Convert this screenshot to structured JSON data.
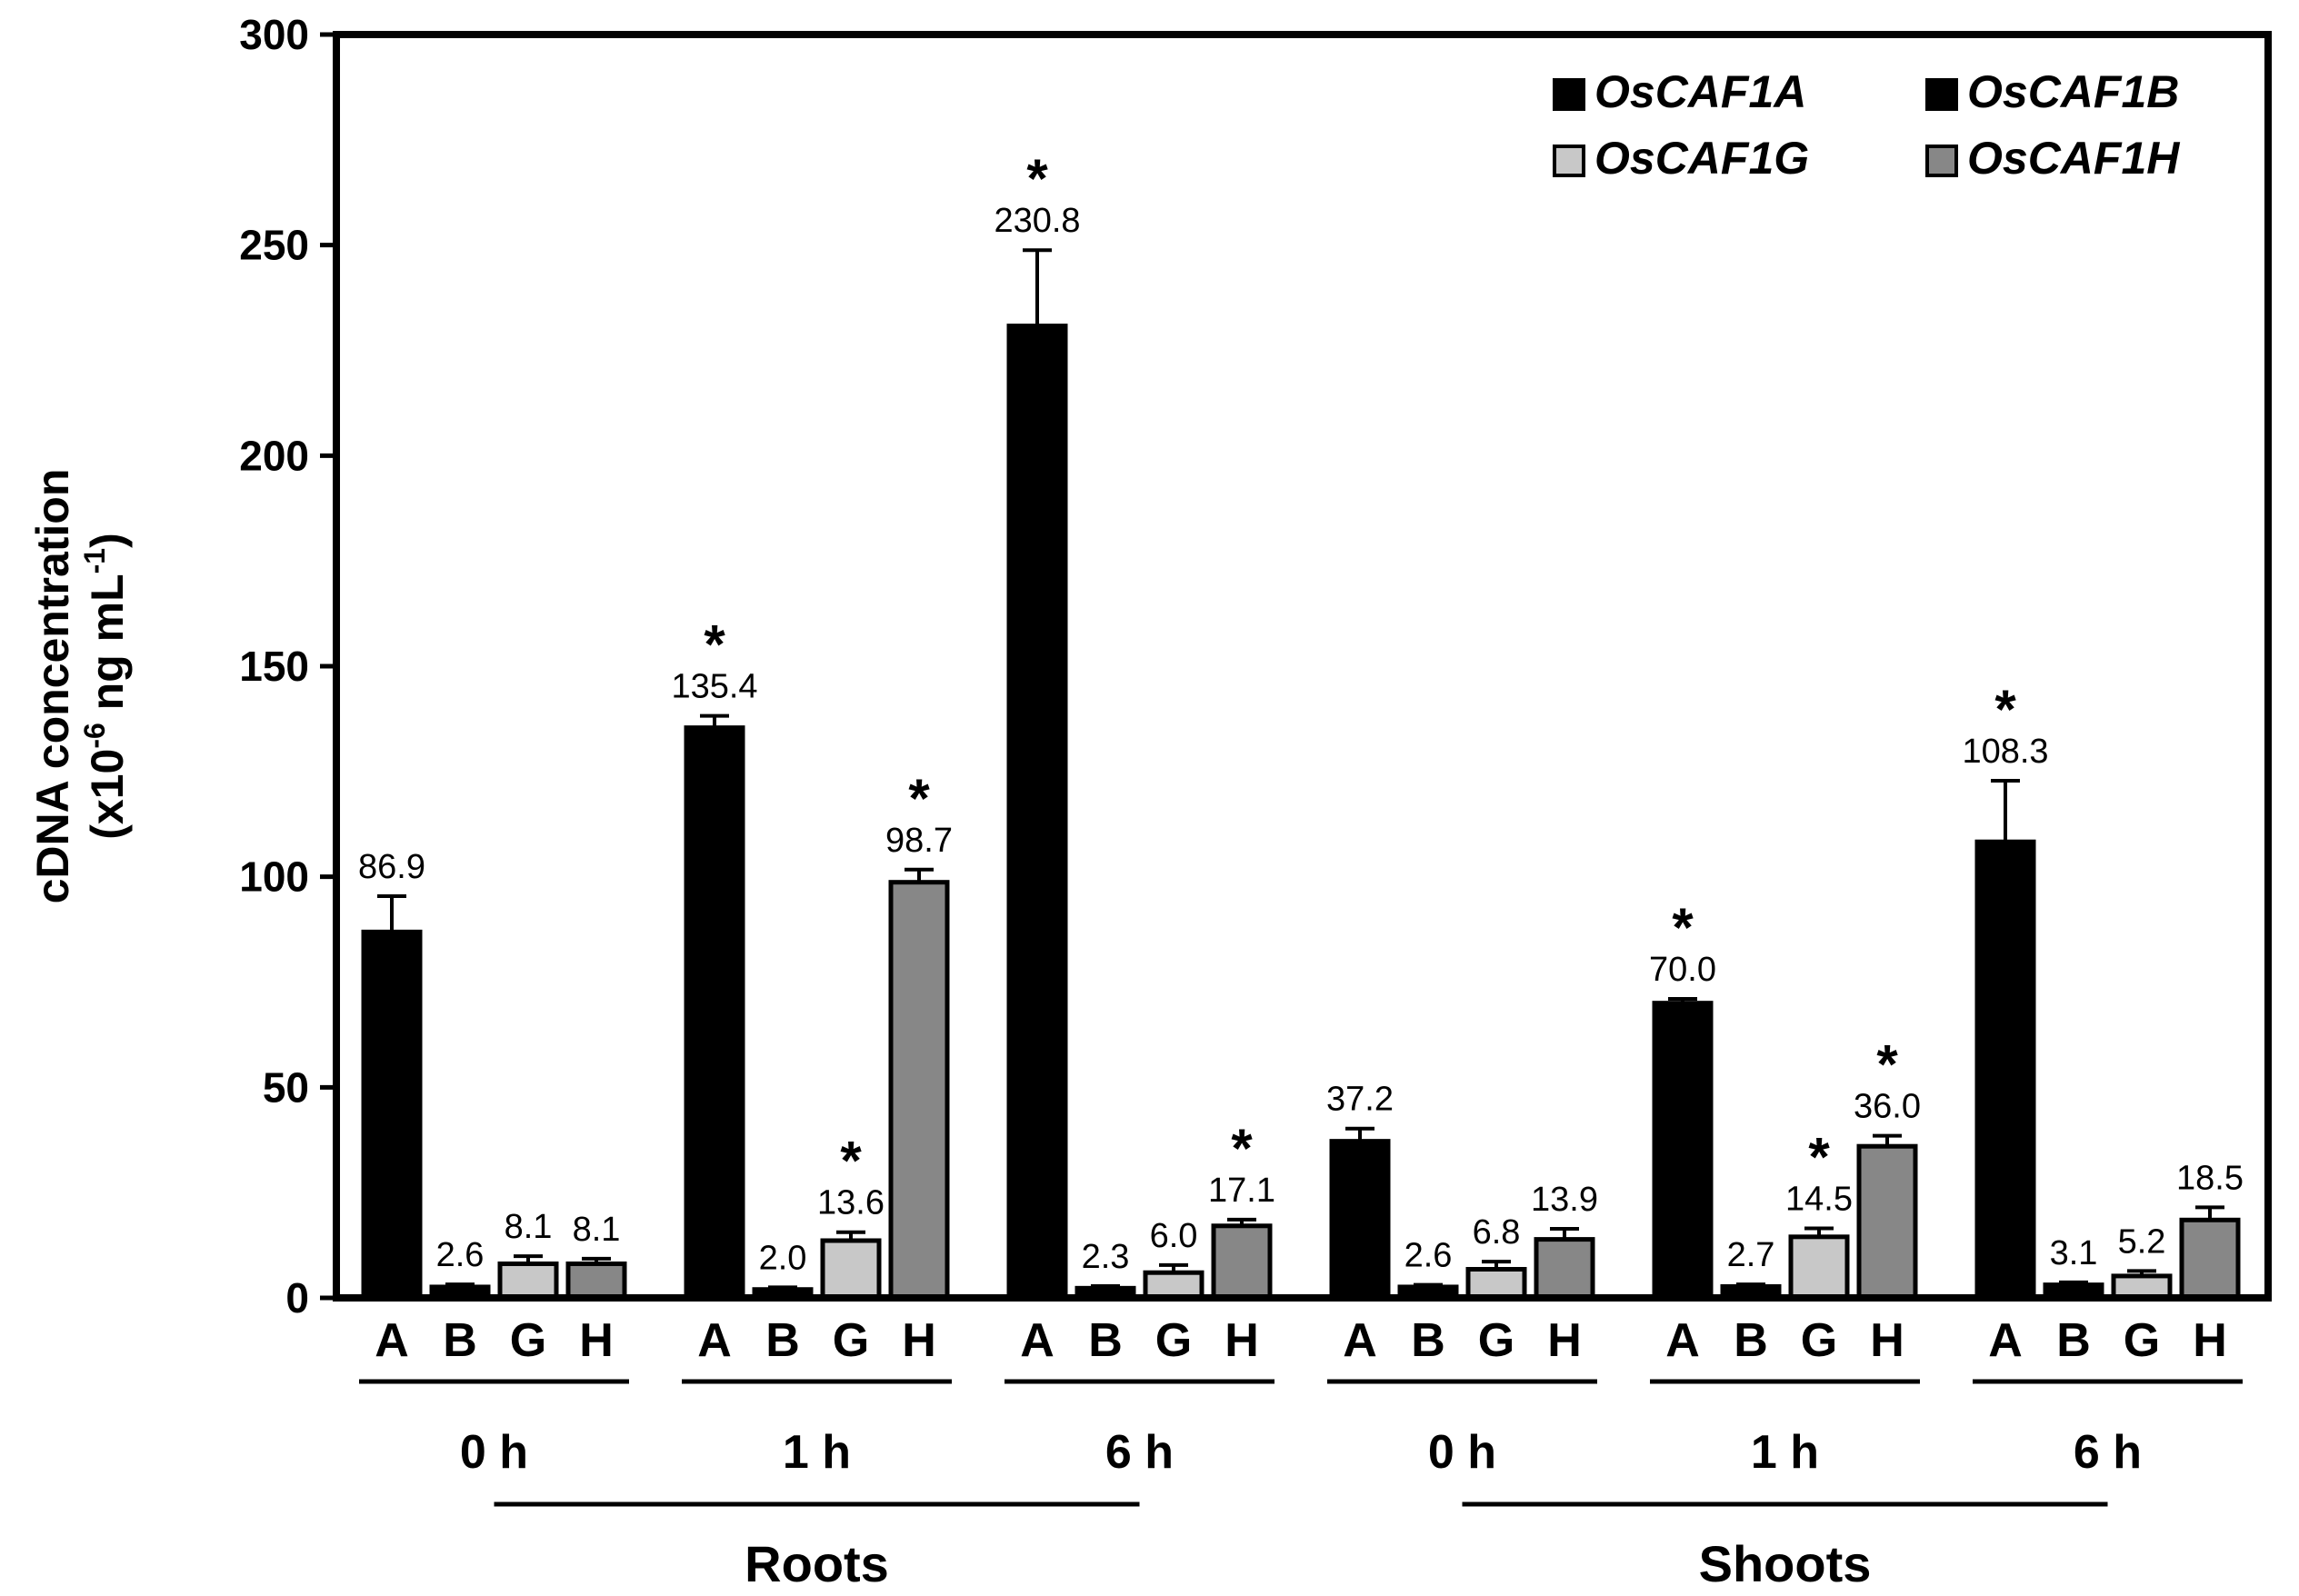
{
  "chart_data": {
    "type": "bar",
    "title": "",
    "ylabel_line1": "cDNA concentration",
    "ylabel_line2_prefix": "(x10",
    "ylabel_line2_exp": "-6",
    "ylabel_line2_mid": " ng mL",
    "ylabel_line2_exp2": "-1",
    "ylabel_line2_suffix": ")",
    "ylim": [
      0,
      300
    ],
    "yticks": [
      0,
      50,
      100,
      150,
      200,
      250,
      300
    ],
    "series": [
      {
        "name": "OsCAF1A",
        "abbr": "A",
        "color": "#000000"
      },
      {
        "name": "OsCAF1B",
        "abbr": "B",
        "color": "#000000"
      },
      {
        "name": "OsCAF1G",
        "abbr": "G",
        "color": "#c8c8c8"
      },
      {
        "name": "OsCAF1H",
        "abbr": "H",
        "color": "#878787"
      }
    ],
    "tissues": [
      {
        "name": "Roots",
        "groups": [
          {
            "time": "0 h",
            "values": [
              86.9,
              2.6,
              8.1,
              8.1
            ],
            "errors": [
              8.5,
              0.6,
              1.8,
              1.2
            ],
            "labels": [
              "86.9",
              "2.6",
              "8.1",
              "8.1"
            ],
            "significant": [
              false,
              false,
              false,
              false
            ]
          },
          {
            "time": "1 h",
            "values": [
              135.4,
              2.0,
              13.6,
              98.7
            ],
            "errors": [
              2.8,
              0.5,
              2.0,
              3.0
            ],
            "labels": [
              "135.4",
              "2.0",
              "13.6",
              "98.7"
            ],
            "significant": [
              true,
              false,
              true,
              true
            ]
          },
          {
            "time": "6 h",
            "values": [
              230.8,
              2.3,
              6.0,
              17.1
            ],
            "errors": [
              18.0,
              0.5,
              1.8,
              1.5
            ],
            "labels": [
              "230.8",
              "2.3",
              "6.0",
              "17.1"
            ],
            "significant": [
              true,
              false,
              false,
              true
            ]
          }
        ]
      },
      {
        "name": "Shoots",
        "groups": [
          {
            "time": "0 h",
            "values": [
              37.2,
              2.6,
              6.8,
              13.9
            ],
            "errors": [
              3.0,
              0.5,
              1.8,
              2.5
            ],
            "labels": [
              "37.2",
              "2.6",
              "6.8",
              "13.9"
            ],
            "significant": [
              false,
              false,
              false,
              false
            ]
          },
          {
            "time": "1 h",
            "values": [
              70.0,
              2.7,
              14.5,
              36.0
            ],
            "errors": [
              1.0,
              0.5,
              2.0,
              2.5
            ],
            "labels": [
              "70.0",
              "2.7",
              "14.5",
              "36.0"
            ],
            "significant": [
              true,
              false,
              true,
              true
            ]
          },
          {
            "time": "6 h",
            "values": [
              108.3,
              3.1,
              5.2,
              18.5
            ],
            "errors": [
              14.5,
              0.6,
              1.2,
              3.0
            ],
            "labels": [
              "108.3",
              "3.1",
              "5.2",
              "18.5"
            ],
            "significant": [
              true,
              false,
              false,
              false
            ]
          }
        ]
      }
    ],
    "significance_marker": "*",
    "legend_position": "top-right"
  }
}
